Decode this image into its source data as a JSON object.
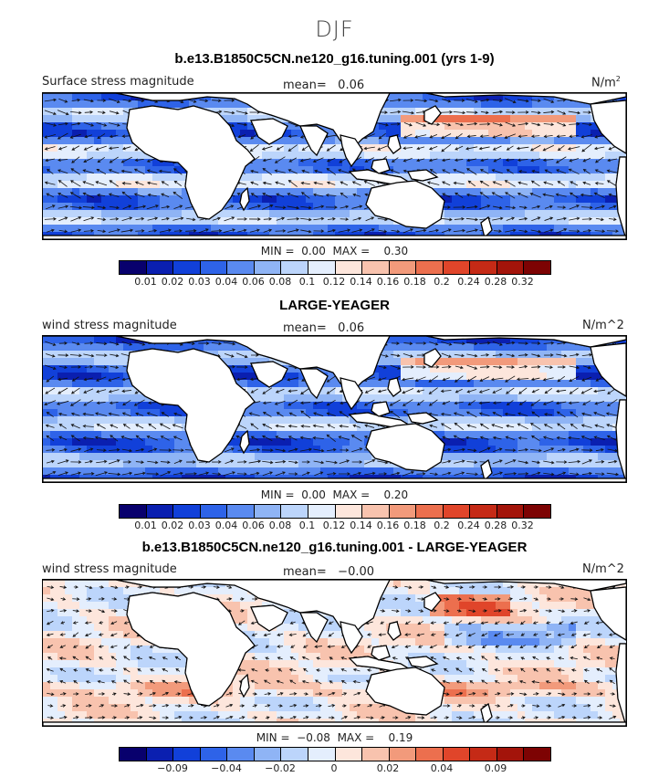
{
  "main_title": "DJF",
  "colors": [
    "#08006d",
    "#0a1fb0",
    "#1140d9",
    "#2e63e8",
    "#5a8af0",
    "#8fb4f5",
    "#bcd5fb",
    "#e4eefd",
    "#fde6dc",
    "#f8c3ae",
    "#f29a7b",
    "#ec6f4e",
    "#e0452a",
    "#c52a16",
    "#a3140a",
    "#7d0303"
  ],
  "land_color": "#ffffff",
  "chart_data": [
    {
      "type": "heatmap",
      "title": "b.e13.B1850C5CN.ne120_g16.tuning.001 (yrs 1-9)",
      "left_label": "Surface stress magnitude",
      "mean_label": "mean=",
      "mean_value": "0.06",
      "units": "N/m",
      "units_sup": "2",
      "min_label": "MIN =",
      "min_value": "0.00",
      "max_label": "MAX =",
      "max_value": "0.30",
      "tick_labels": [
        "0.01",
        "0.02",
        "0.03",
        "0.04",
        "0.06",
        "0.08",
        "0.1",
        "0.12",
        "0.14",
        "0.16",
        "0.18",
        "0.2",
        "0.24",
        "0.28",
        "0.32"
      ],
      "field": "model"
    },
    {
      "type": "heatmap",
      "title": "LARGE-YEAGER",
      "left_label": "wind stress magnitude",
      "mean_label": "mean=",
      "mean_value": "0.06",
      "units": "N/m^2",
      "units_sup": "",
      "min_label": "MIN =",
      "min_value": "0.00",
      "max_label": "MAX =",
      "max_value": "0.20",
      "tick_labels": [
        "0.01",
        "0.02",
        "0.03",
        "0.04",
        "0.06",
        "0.08",
        "0.1",
        "0.12",
        "0.14",
        "0.16",
        "0.18",
        "0.2",
        "0.24",
        "0.28",
        "0.32"
      ],
      "field": "obs"
    },
    {
      "type": "heatmap",
      "title": "b.e13.B1850C5CN.ne120_g16.tuning.001 - LARGE-YEAGER",
      "left_label": "wind stress magnitude",
      "mean_label": "mean=",
      "mean_value": "−0.00",
      "units": "N/m^2",
      "units_sup": "",
      "min_label": "MIN =",
      "min_value": "−0.08",
      "max_label": "MAX =",
      "max_value": "0.19",
      "tick_labels": [
        "",
        "−0.09",
        "",
        "−0.04",
        "",
        "−0.02",
        "",
        "0",
        "",
        "0.02",
        "",
        "0.04",
        "",
        "0.09",
        ""
      ],
      "field": "diff"
    }
  ]
}
